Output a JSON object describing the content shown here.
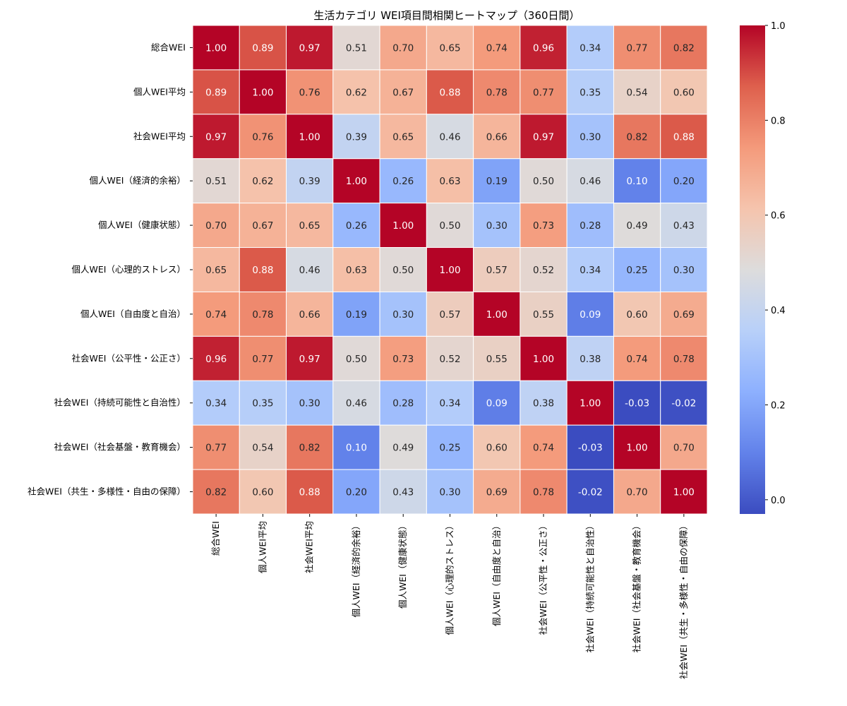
{
  "chart_data": {
    "type": "heatmap",
    "title": "生活カテゴリ WEI項目間相関ヒートマップ（360日間）",
    "labels": [
      "総合WEI",
      "個人WEI平均",
      "社会WEI平均",
      "個人WEI（経済的余裕）",
      "個人WEI（健康状態）",
      "個人WEI（心理的ストレス）",
      "個人WEI（自由度と自治）",
      "社会WEI（公平性・公正さ）",
      "社会WEI（持続可能性と自治性）",
      "社会WEI（社会基盤・教育機会）",
      "社会WEI（共生・多様性・自由の保障）"
    ],
    "values": [
      [
        1.0,
        0.89,
        0.97,
        0.51,
        0.7,
        0.65,
        0.74,
        0.96,
        0.34,
        0.77,
        0.82
      ],
      [
        0.89,
        1.0,
        0.76,
        0.62,
        0.67,
        0.88,
        0.78,
        0.77,
        0.35,
        0.54,
        0.6
      ],
      [
        0.97,
        0.76,
        1.0,
        0.39,
        0.65,
        0.46,
        0.66,
        0.97,
        0.3,
        0.82,
        0.88
      ],
      [
        0.51,
        0.62,
        0.39,
        1.0,
        0.26,
        0.63,
        0.19,
        0.5,
        0.46,
        0.1,
        0.2
      ],
      [
        0.7,
        0.67,
        0.65,
        0.26,
        1.0,
        0.5,
        0.3,
        0.73,
        0.28,
        0.49,
        0.43
      ],
      [
        0.65,
        0.88,
        0.46,
        0.63,
        0.5,
        1.0,
        0.57,
        0.52,
        0.34,
        0.25,
        0.3
      ],
      [
        0.74,
        0.78,
        0.66,
        0.19,
        0.3,
        0.57,
        1.0,
        0.55,
        0.09,
        0.6,
        0.69
      ],
      [
        0.96,
        0.77,
        0.97,
        0.5,
        0.73,
        0.52,
        0.55,
        1.0,
        0.38,
        0.74,
        0.78
      ],
      [
        0.34,
        0.35,
        0.3,
        0.46,
        0.28,
        0.34,
        0.09,
        0.38,
        1.0,
        -0.03,
        -0.02
      ],
      [
        0.77,
        0.54,
        0.82,
        0.1,
        0.49,
        0.25,
        0.6,
        0.74,
        -0.03,
        1.0,
        0.7
      ],
      [
        0.82,
        0.6,
        0.88,
        0.2,
        0.43,
        0.3,
        0.69,
        0.78,
        -0.02,
        0.7,
        1.0
      ]
    ],
    "colorscale": "coolwarm",
    "vmin": -0.03,
    "vmax": 1.0,
    "colorbar_ticks": [
      "0.0",
      "0.2",
      "0.4",
      "0.6",
      "0.8",
      "1.0"
    ]
  }
}
